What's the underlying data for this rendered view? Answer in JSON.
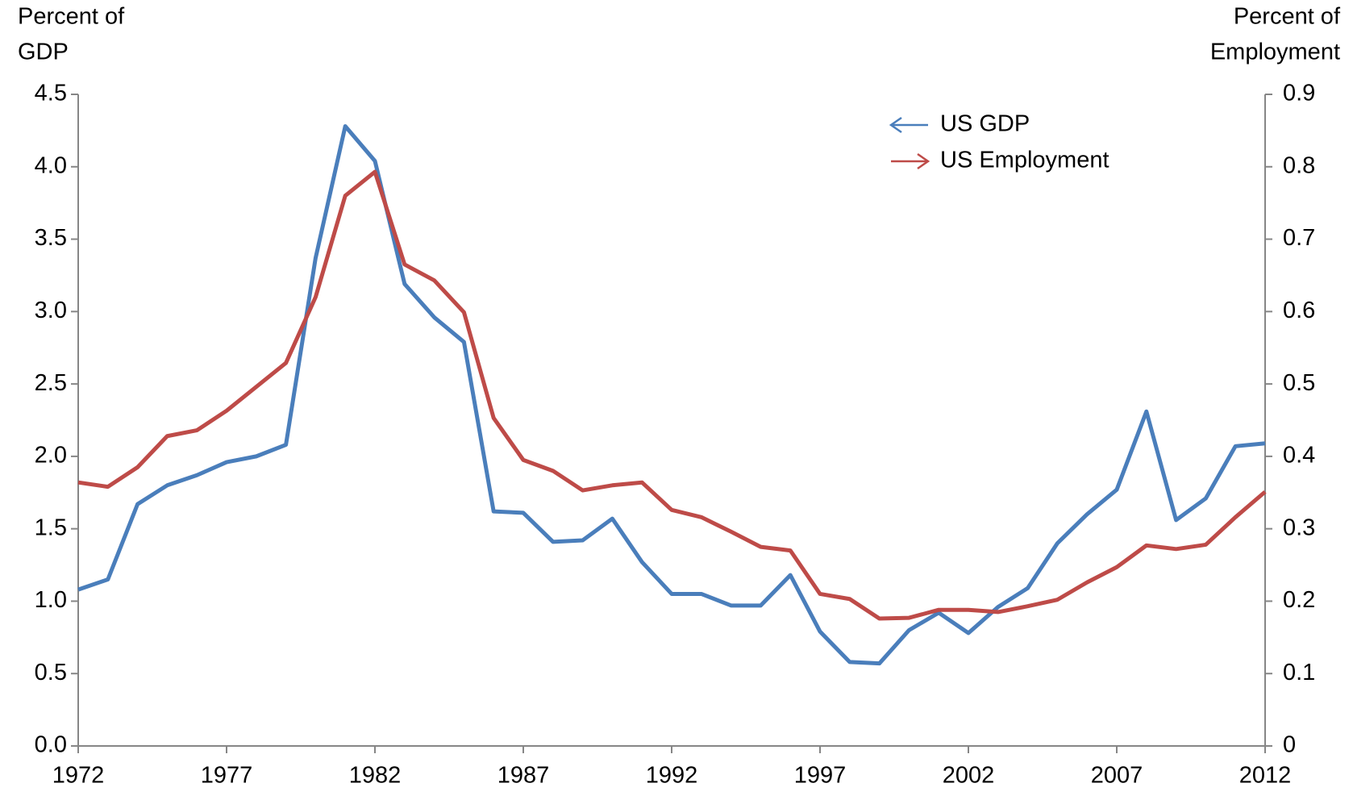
{
  "chart_data": {
    "type": "line",
    "ylabel": [
      "Percent of",
      "GDP"
    ],
    "y2label": [
      "Percent of",
      "Employment"
    ],
    "x": [
      1972,
      1973,
      1974,
      1975,
      1976,
      1977,
      1978,
      1979,
      1980,
      1981,
      1982,
      1983,
      1984,
      1985,
      1986,
      1987,
      1988,
      1989,
      1990,
      1991,
      1992,
      1993,
      1994,
      1995,
      1996,
      1997,
      1998,
      1999,
      2000,
      2001,
      2002,
      2003,
      2004,
      2005,
      2006,
      2007,
      2008,
      2009,
      2010,
      2011,
      2012
    ],
    "series": [
      {
        "name": "US GDP",
        "color": "#4a7ebb",
        "axis": "y",
        "values": [
          1.08,
          1.15,
          1.67,
          1.8,
          1.87,
          1.96,
          2.0,
          2.08,
          3.37,
          4.28,
          4.04,
          3.19,
          2.96,
          2.79,
          1.62,
          1.61,
          1.41,
          1.42,
          1.57,
          1.27,
          1.05,
          1.05,
          0.97,
          0.97,
          1.18,
          0.79,
          0.58,
          0.57,
          0.8,
          0.92,
          0.78,
          0.96,
          1.09,
          1.4,
          1.6,
          1.77,
          2.31,
          1.56,
          1.71,
          2.07,
          2.09
        ]
      },
      {
        "name": "US Employment",
        "color": "#be4b48",
        "axis": "y2",
        "values": [
          0.364,
          0.358,
          0.385,
          0.428,
          0.436,
          0.463,
          0.496,
          0.529,
          0.62,
          0.76,
          0.793,
          0.665,
          0.643,
          0.599,
          0.453,
          0.395,
          0.38,
          0.353,
          0.36,
          0.364,
          0.326,
          0.316,
          0.296,
          0.275,
          0.27,
          0.21,
          0.203,
          0.176,
          0.177,
          0.188,
          0.188,
          0.185,
          0.193,
          0.202,
          0.226,
          0.247,
          0.277,
          0.272,
          0.278,
          0.316,
          0.351
        ]
      }
    ],
    "xlim": [
      1972,
      2012
    ],
    "xticks": [
      1972,
      1977,
      1982,
      1987,
      1992,
      1997,
      2002,
      2007,
      2012
    ],
    "ylim": [
      0,
      4.5
    ],
    "yticks": [
      {
        "value": 0,
        "label": "0.0"
      },
      0.5,
      {
        "value": 1,
        "label": "1.0"
      },
      1.5,
      {
        "value": 2,
        "label": "2.0"
      },
      2.5,
      {
        "value": 3,
        "label": "3.0"
      },
      3.5,
      {
        "value": 4,
        "label": "4.0"
      },
      4.5
    ],
    "y2lim": [
      0,
      0.9
    ],
    "y2ticks": [
      0,
      0.1,
      0.2,
      0.3,
      0.4,
      0.5,
      0.6,
      0.7,
      0.8,
      0.9
    ],
    "grid": false,
    "legend": "upper right"
  }
}
